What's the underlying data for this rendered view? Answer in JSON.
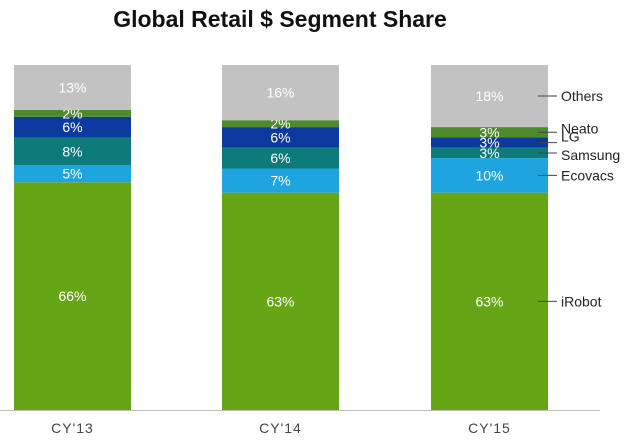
{
  "chart_data": {
    "type": "bar",
    "stacked": true,
    "title": "Global Retail $ Segment Share",
    "xlabel": "",
    "ylabel": "",
    "ylim": [
      0,
      100
    ],
    "grid": false,
    "legend_placement": "right",
    "categories": [
      "CY'13",
      "CY'14",
      "CY'15"
    ],
    "series": [
      {
        "name": "iRobot",
        "color": "#66a516",
        "values": [
          66,
          63,
          63
        ],
        "labels": [
          "66%",
          "63%",
          "63%"
        ]
      },
      {
        "name": "Ecovacs",
        "color": "#1ea5e0",
        "values": [
          5,
          7,
          10
        ],
        "labels": [
          "5%",
          "7%",
          "10%"
        ]
      },
      {
        "name": "Samsung",
        "color": "#0f7a7a",
        "values": [
          8,
          6,
          3
        ],
        "labels": [
          "8%",
          "6%",
          "3%"
        ]
      },
      {
        "name": "LG",
        "color": "#0c3a9e",
        "values": [
          6,
          6,
          3
        ],
        "labels": [
          "6%",
          "6%",
          "3%"
        ]
      },
      {
        "name": "Neato",
        "color": "#4f8a2d",
        "values": [
          2,
          2,
          3
        ],
        "labels": [
          "2%",
          "2%",
          "3%"
        ]
      },
      {
        "name": "Others",
        "color": "#c2c2c2",
        "values": [
          13,
          16,
          18
        ],
        "labels": [
          "13%",
          "16%",
          "18%"
        ]
      }
    ]
  }
}
